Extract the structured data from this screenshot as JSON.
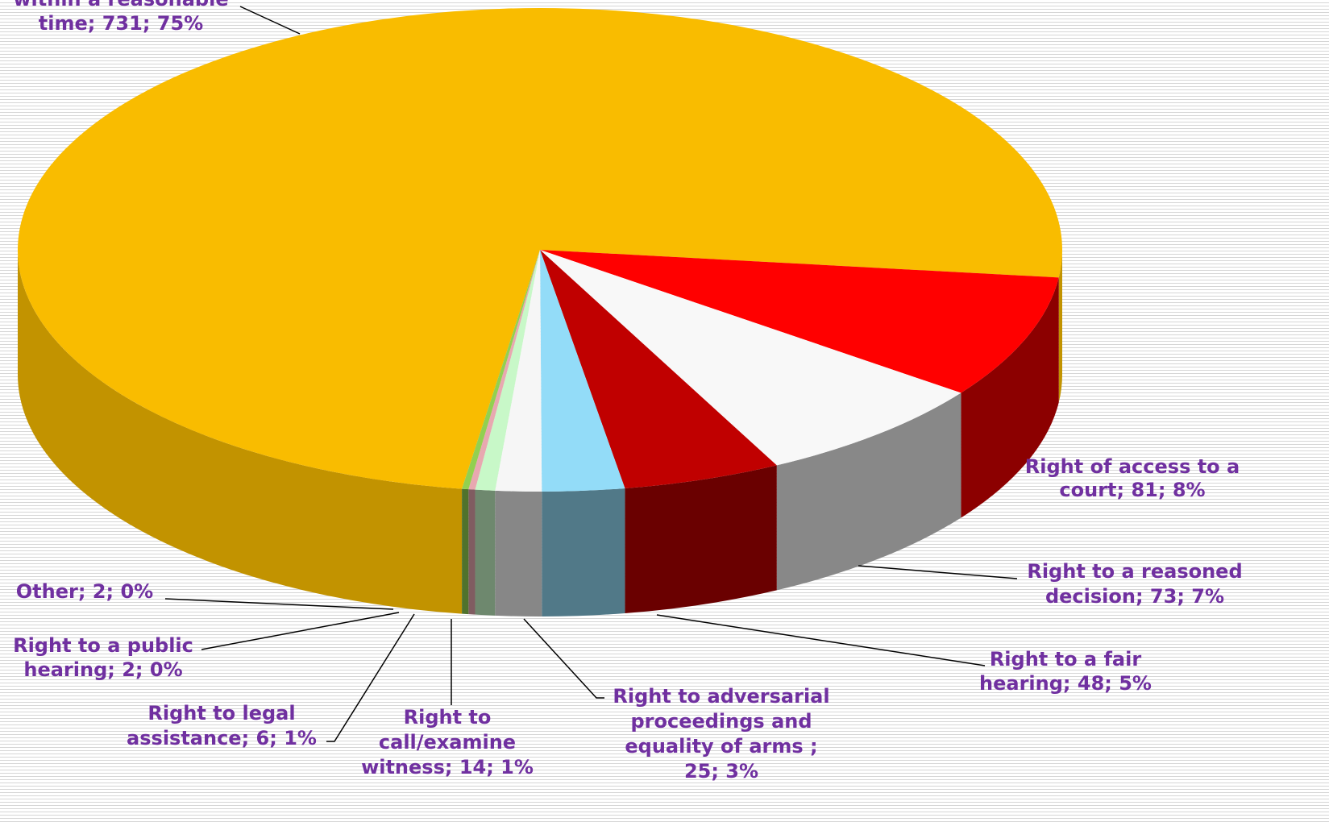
{
  "chart_data": {
    "type": "pie",
    "values": [
      731,
      81,
      73,
      48,
      25,
      14,
      6,
      2,
      2
    ],
    "labels": [
      [
        "within a reasonable",
        "time; 731; 75%"
      ],
      [
        "Right of access to a",
        "court; 81; 8%"
      ],
      [
        "Right to a reasoned",
        "decision; 73; 7%"
      ],
      [
        "Right to a fair",
        "hearing; 48; 5%"
      ],
      [
        "Right to adversarial",
        "proceedings and",
        "equality of arms ;",
        "25; 3%"
      ],
      [
        "Right to",
        "call/examine",
        "witness; 14; 1%"
      ],
      [
        "Right to legal",
        "assistance; 6; 1%"
      ],
      [
        "Right to a public",
        "hearing; 2; 0%"
      ],
      [
        "Other; 2; 0%"
      ]
    ],
    "colors": [
      "#f9bc00",
      "#ff0000",
      "#f8f8f8",
      "#c00000",
      "#93dcf8",
      "#f6f6f6",
      "#c8f8c8",
      "#e8a8b0",
      "#92d050"
    ]
  }
}
